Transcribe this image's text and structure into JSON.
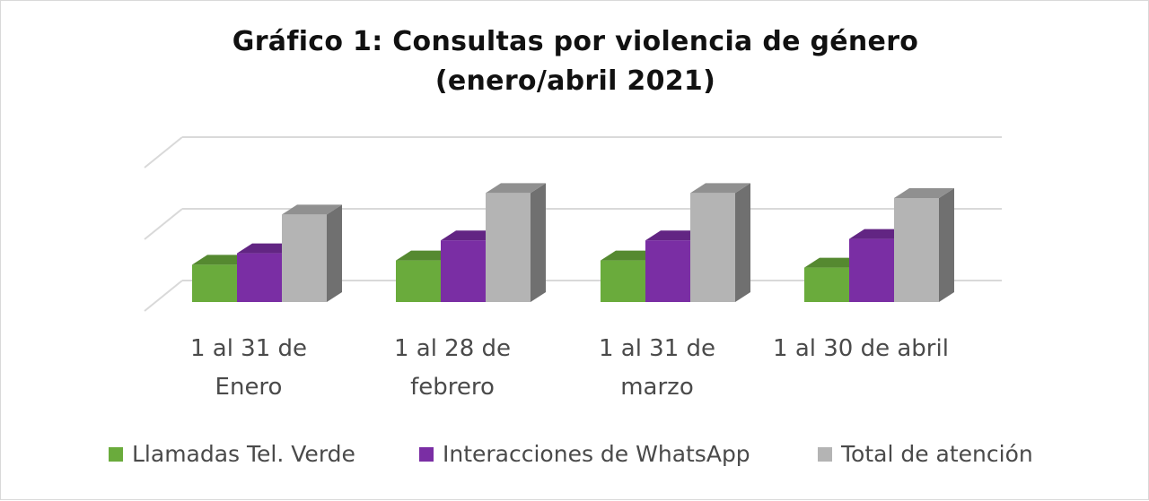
{
  "chart_data": {
    "type": "bar",
    "title_line1": "Gráfico 1: Consultas por violencia de género",
    "title_line2": "(enero/abril 2021)",
    "categories": [
      [
        "1 al 31 de",
        "Enero"
      ],
      [
        "1 al 28 de",
        "febrero"
      ],
      [
        "1 al 31 de",
        "marzo"
      ],
      [
        "1 al 30 de abril"
      ]
    ],
    "series": [
      {
        "name": "Llamadas Tel. Verde",
        "color": "#6aab3c",
        "values": [
          0.52,
          0.58,
          0.58,
          0.48
        ]
      },
      {
        "name": "Interacciones de WhatsApp",
        "color": "#7a2ea4",
        "values": [
          0.68,
          0.86,
          0.86,
          0.88
        ]
      },
      {
        "name": "Total de atención",
        "color": "#b4b4b4",
        "values": [
          1.22,
          1.52,
          1.52,
          1.45
        ]
      }
    ],
    "ylim": [
      0,
      2.2
    ],
    "grid": true,
    "legend_position": "bottom",
    "style": "3d-column"
  }
}
